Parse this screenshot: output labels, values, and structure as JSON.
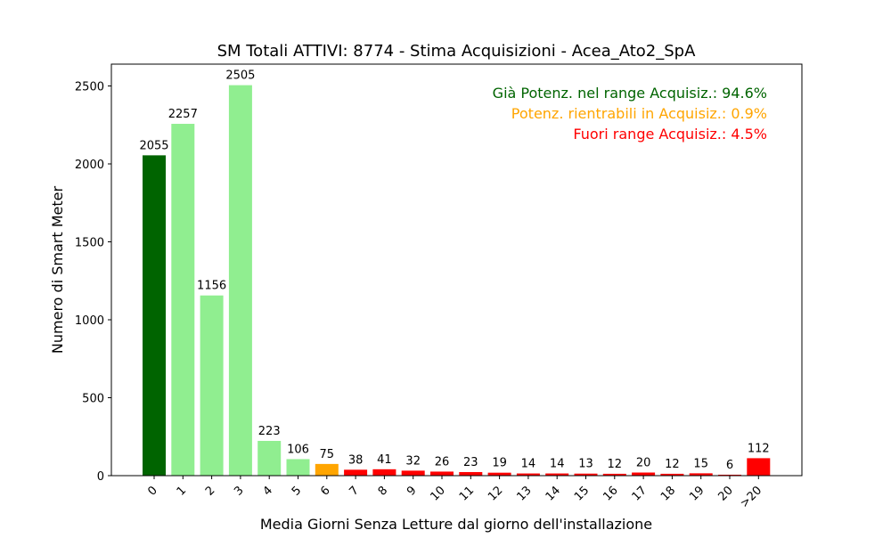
{
  "chart_data": {
    "type": "bar",
    "title": "SM Totali ATTIVI: 8774 - Stima Acquisizioni - Acea_Ato2_SpA",
    "xlabel": "Media Giorni Senza Letture dal giorno dell'installazione",
    "ylabel": "Numero di Smart Meter",
    "ylim": [
      0,
      2640
    ],
    "yticks": [
      0,
      500,
      1000,
      1500,
      2000,
      2500
    ],
    "grid": false,
    "categories": [
      "0",
      "1",
      "2",
      "3",
      "4",
      "5",
      "6",
      "7",
      "8",
      "9",
      "10",
      "11",
      "12",
      "13",
      "14",
      "15",
      "16",
      "17",
      "18",
      "19",
      "20",
      ">20"
    ],
    "values": [
      2055,
      2257,
      1156,
      2505,
      223,
      106,
      75,
      38,
      41,
      32,
      26,
      23,
      19,
      14,
      14,
      13,
      12,
      20,
      12,
      15,
      6,
      112
    ],
    "bar_colors": [
      "#006400",
      "#90ee90",
      "#90ee90",
      "#90ee90",
      "#90ee90",
      "#90ee90",
      "#ffa500",
      "#ff0000",
      "#ff0000",
      "#ff0000",
      "#ff0000",
      "#ff0000",
      "#ff0000",
      "#ff0000",
      "#ff0000",
      "#ff0000",
      "#ff0000",
      "#ff0000",
      "#ff0000",
      "#ff0000",
      "#ff0000",
      "#ff0000"
    ],
    "annotations": [
      {
        "text": "Già Potenz. nel range Acquisiz.: 94.6%",
        "color": "#006400"
      },
      {
        "text": "Potenz. rientrabili in Acquisiz.: 0.9%",
        "color": "#ffa500"
      },
      {
        "text": "Fuori range Acquisiz.: 4.5%",
        "color": "#ff0000"
      }
    ]
  }
}
